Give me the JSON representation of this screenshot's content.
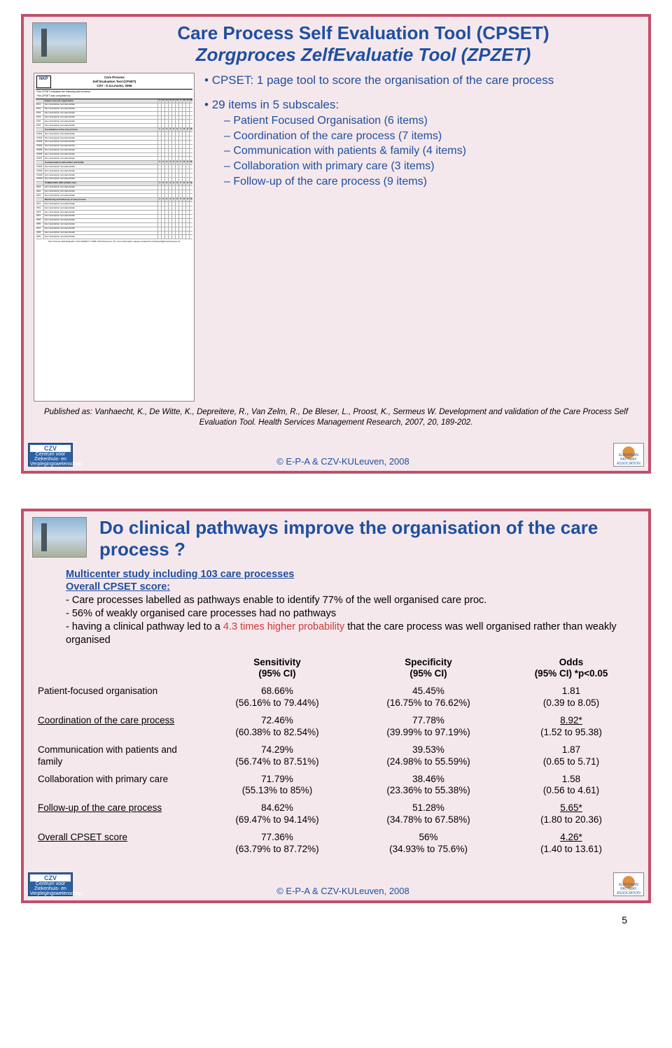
{
  "slide1": {
    "title1": "Care Process Self Evaluation Tool (CPSET)",
    "title2": "Zorgproces ZelfEvaluatie Tool (ZPZET)",
    "bul1": "CPSET: 1 page tool to score the organisation of the care process",
    "bul2": "29 items in 5 subscales:",
    "sub1": "Patient Focused Organisation (6 items)",
    "sub2": "Coordination of the care process (7 items)",
    "sub3": "Communication with patients & family (4 items)",
    "sub4": "Collaboration with primary care (3 items)",
    "sub5": "Follow-up of the care process (9 items)",
    "citation": "Published as: Vanhaecht, K., De Witte, K., Depreitere, R., Van Zelm, R., De Bleser, L., Proost, K., Sermeus W. Development and validation of the Care Process Self Evaluation Tool. Health Services Management Research, 2007, 20, 189-202.",
    "form": {
      "nkp": "NKP",
      "formtitle_l1": "Care Process",
      "formtitle_l2": "Self Evaluation Tool (CPSET)",
      "formtitle_l3": "CZV - K.U.Leuven, 2006",
      "preamble": "This CPSET evaluates the following care process:",
      "completed": "This CPSET was completed by:",
      "sections": [
        {
          "name": "Patient focused organisation",
          "codes": [
            "PO1",
            "PO2",
            "PO3",
            "PO4",
            "PO5",
            "PO6"
          ]
        },
        {
          "name": "Coordination of the care process",
          "codes": [
            "COR1",
            "COR2",
            "COR3",
            "COR4",
            "COR5",
            "COR6",
            "COR7"
          ]
        },
        {
          "name": "Communication with patient and family",
          "codes": [
            "COM1",
            "COM2",
            "COM3",
            "COM4"
          ]
        },
        {
          "name": "Collaboration with primary care",
          "codes": [
            "GE1",
            "GE2",
            "GE3"
          ]
        },
        {
          "name": "Monitoring and follow-up of care process",
          "codes": [
            "OP1",
            "OP2",
            "OP3",
            "OP4",
            "OP5",
            "OP6",
            "OP7",
            "OP8",
            "OP9"
          ]
        }
      ],
      "footer": "Care Process Self Evaluation Tool (CPSET) © 2006, CZV-KULeuven. For more information, please contact Kris.Vanhaecht@med.kuleuven.be"
    }
  },
  "slide2": {
    "title": "Do clinical pathways improve the organisation of the care process ?",
    "intro_hl1": "Multicenter study including 103 care processes",
    "intro_hl2": "Overall CPSET score:",
    "intro_l1": "- Care processes labelled as pathways enable to identify 77% of the well organised care proc.",
    "intro_l2": "- 56% of weakly organised care processes had no pathways",
    "intro_l3a": "- having a clinical pathway led to a ",
    "intro_l3b": "4.3 times higher probability",
    "intro_l3c": " that the care process was well organised rather than weakly organised",
    "table": {
      "headers": [
        "",
        "Sensitivity\n(95% CI)",
        "Specificity\n(95% CI)",
        "Odds\n(95% CI) *p<0.05"
      ],
      "rows": [
        {
          "label": "Patient-focused organisation",
          "u": false,
          "sens": "68.66%",
          "sens_ci": "(56.16% to 79.44%)",
          "spec": "45.45%",
          "spec_ci": "(16.75% to 76.62%)",
          "odds": "1.81",
          "odds_ci": "(0.39 to 8.05)",
          "sig": false
        },
        {
          "label": "Coordination of the care process",
          "u": true,
          "sens": "72.46%",
          "sens_ci": "(60.38% to 82.54%)",
          "spec": "77.78%",
          "spec_ci": "(39.99% to 97.19%)",
          "odds": "8.92*",
          "odds_ci": "(1.52 to 95.38)",
          "sig": true
        },
        {
          "label": "Communication with patients and family",
          "u": false,
          "sens": "74.29%",
          "sens_ci": "(56.74% to 87.51%)",
          "spec": "39.53%",
          "spec_ci": "(24.98% to 55.59%)",
          "odds": "1.87",
          "odds_ci": "(0.65 to 5.71)",
          "sig": false
        },
        {
          "label": "Collaboration with primary care",
          "u": false,
          "sens": "71.79%",
          "sens_ci": "(55.13% to 85%)",
          "spec": "38.46%",
          "spec_ci": "(23.36% to 55.38%)",
          "odds": "1.58",
          "odds_ci": "(0.56 to 4.61)",
          "sig": false
        },
        {
          "label": "Follow-up of the care process",
          "u": true,
          "sens": "84.62%",
          "sens_ci": "(69.47% to 94.14%)",
          "spec": "51.28%",
          "spec_ci": "(34.78% to 67.58%)",
          "odds": "5.65*",
          "odds_ci": "(1.80 to 20.36)",
          "sig": true
        },
        {
          "label": "Overall CPSET score",
          "u": true,
          "sens": "77.36%",
          "sens_ci": "(63.79% to 87.72%)",
          "spec": "56%",
          "spec_ci": "(34.93% to 75.6%)",
          "odds": "4.26*",
          "odds_ci": "(1.40 to 13.61)",
          "sig": true
        }
      ]
    }
  },
  "footer": {
    "copyright": "© E-P-A & CZV-KULeuven, 2008",
    "czv_top": "CZV",
    "czv_sub": "Centrum voor Ziekenhuis- en Verplegingswetenschap",
    "epa": "EUROPEAN PATHWAY ASSOCIATION"
  },
  "page_num": "5"
}
